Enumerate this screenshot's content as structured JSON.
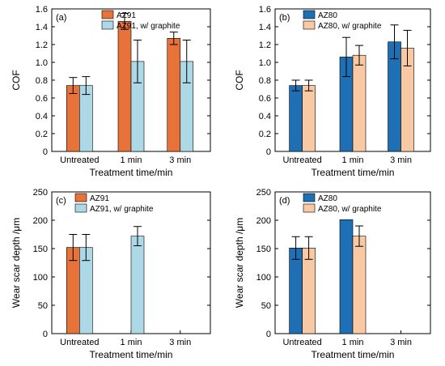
{
  "colors": {
    "az91": "#e8733a",
    "az91_graphite": "#add8e6",
    "az80": "#1f6fb5",
    "az80_graphite": "#f9c9a3"
  },
  "chart_data": [
    {
      "type": "bar",
      "panel": "(a)",
      "categories": [
        "Untreated",
        "1 min",
        "3 min"
      ],
      "xlabel": "Treatment time/min",
      "ylabel": "COF",
      "ylim": [
        0,
        1.6
      ],
      "yticks": [
        "0",
        "0.2",
        "0.4",
        "0.6",
        "0.8",
        "1.0",
        "1.2",
        "1.4",
        "1.6"
      ],
      "legend_position": "top-right",
      "series": [
        {
          "name": "AZ91",
          "color_key": "az91",
          "values": [
            0.74,
            1.46,
            1.27
          ],
          "errors": [
            0.09,
            0.09,
            0.07
          ]
        },
        {
          "name": "AZ91, w/ graphite",
          "color_key": "az91_graphite",
          "values": [
            0.74,
            1.01,
            1.01
          ],
          "errors": [
            0.1,
            0.24,
            0.24
          ]
        }
      ]
    },
    {
      "type": "bar",
      "panel": "(b)",
      "categories": [
        "Untreated",
        "1 min",
        "3 min"
      ],
      "xlabel": "Treatment time/min",
      "ylabel": "COF",
      "ylim": [
        0,
        1.6
      ],
      "yticks": [
        "0",
        "0.2",
        "0.4",
        "0.6",
        "0.8",
        "1.0",
        "1.2",
        "1.4",
        "1.6"
      ],
      "legend_position": "top-right",
      "series": [
        {
          "name": "AZ80",
          "color_key": "az80",
          "values": [
            0.74,
            1.06,
            1.23
          ],
          "errors": [
            0.06,
            0.22,
            0.19
          ]
        },
        {
          "name": "AZ80, w/ graphite",
          "color_key": "az80_graphite",
          "values": [
            0.74,
            1.08,
            1.16
          ],
          "errors": [
            0.06,
            0.11,
            0.2
          ]
        }
      ]
    },
    {
      "type": "bar",
      "panel": "(c)",
      "categories": [
        "Untreated",
        "1 min",
        "3 min"
      ],
      "xlabel": "Treatment time/min",
      "ylabel": "Wear scar depth /μm",
      "ylim": [
        0,
        250
      ],
      "yticks": [
        "0",
        "50",
        "100",
        "150",
        "200",
        "250"
      ],
      "legend_position": "top-left",
      "series": [
        {
          "name": "AZ91",
          "color_key": "az91",
          "values": [
            152,
            null,
            null
          ],
          "errors": [
            23,
            null,
            null
          ]
        },
        {
          "name": "AZ91, w/ graphite",
          "color_key": "az91_graphite",
          "values": [
            152,
            172,
            null
          ],
          "errors": [
            23,
            17,
            null
          ]
        }
      ]
    },
    {
      "type": "bar",
      "panel": "(d)",
      "categories": [
        "Untreated",
        "1 min",
        "3 min"
      ],
      "xlabel": "Treatment time/min",
      "ylabel": "Wear scar depth /μm",
      "ylim": [
        0,
        250
      ],
      "yticks": [
        "0",
        "50",
        "100",
        "150",
        "200",
        "250"
      ],
      "legend_position": "top-left",
      "series": [
        {
          "name": "AZ80",
          "color_key": "az80",
          "values": [
            151,
            201,
            null
          ],
          "errors": [
            20,
            null,
            null
          ]
        },
        {
          "name": "AZ80, w/ graphite",
          "color_key": "az80_graphite",
          "values": [
            151,
            172,
            null
          ],
          "errors": [
            20,
            18,
            null
          ]
        }
      ]
    }
  ]
}
